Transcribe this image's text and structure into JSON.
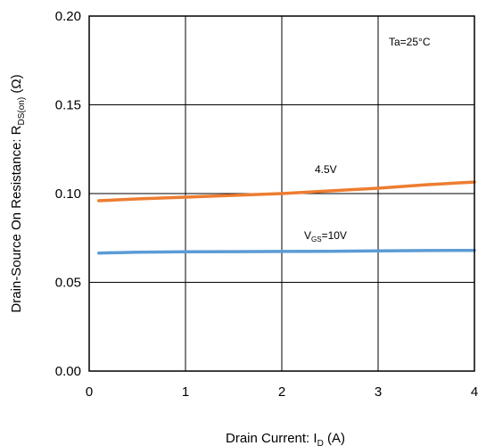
{
  "chart_data": {
    "type": "line",
    "title": "",
    "xlabel": {
      "text": "Drain Current: I",
      "sub": "D",
      "unit": " (A)"
    },
    "ylabel": {
      "text": "Drain-Source On Resistance: R",
      "sub": "DS(on)",
      "unit": " (Ω)"
    },
    "xlim": [
      0,
      4
    ],
    "ylim": [
      0,
      0.2
    ],
    "x_ticks": [
      "0",
      "1",
      "2",
      "3",
      "4"
    ],
    "y_ticks": [
      "0.00",
      "0.05",
      "0.10",
      "0.15",
      "0.20"
    ],
    "grid": true,
    "annotations": {
      "temp": "Ta=25°C",
      "vgs10": {
        "text": "V",
        "sub": "GS",
        "rest": "=10V"
      },
      "v45": "4.5V"
    },
    "series": [
      {
        "name": "4.5V",
        "color": "#ED7D31",
        "x": [
          0.1,
          0.5,
          1.0,
          1.5,
          2.0,
          2.5,
          3.0,
          3.5,
          4.0
        ],
        "y": [
          0.096,
          0.097,
          0.098,
          0.099,
          0.1,
          0.1015,
          0.103,
          0.105,
          0.1065
        ]
      },
      {
        "name": "VGS=10V",
        "color": "#5B9BD5",
        "x": [
          0.1,
          0.5,
          1.0,
          1.5,
          2.0,
          2.5,
          3.0,
          3.5,
          4.0
        ],
        "y": [
          0.0665,
          0.067,
          0.0672,
          0.0673,
          0.0674,
          0.0675,
          0.0677,
          0.0679,
          0.068
        ]
      }
    ]
  }
}
